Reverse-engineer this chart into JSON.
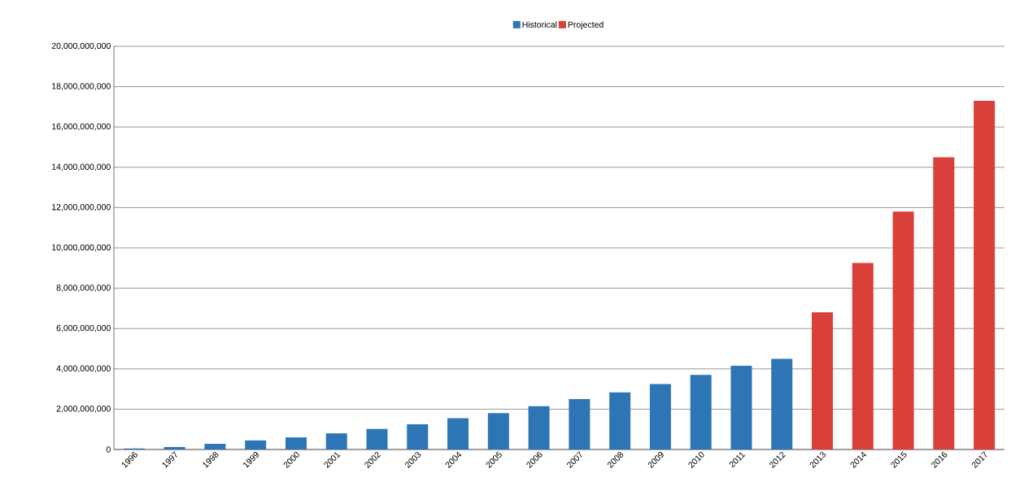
{
  "chart_data": {
    "type": "bar",
    "categories": [
      "1996",
      "1997",
      "1998",
      "1999",
      "2000",
      "2001",
      "2002",
      "2003",
      "2004",
      "2005",
      "2006",
      "2007",
      "2008",
      "2009",
      "2010",
      "2011",
      "2012",
      "2013",
      "2014",
      "2015",
      "2016",
      "2017"
    ],
    "series": [
      {
        "name": "Historical",
        "color": "#2e75b6",
        "values": [
          50000000,
          120000000,
          280000000,
          450000000,
          600000000,
          800000000,
          1020000000,
          1250000000,
          1550000000,
          1800000000,
          2150000000,
          2500000000,
          2830000000,
          3250000000,
          3700000000,
          4150000000,
          4500000000,
          null,
          null,
          null,
          null,
          null
        ]
      },
      {
        "name": "Projected",
        "color": "#d9403a",
        "values": [
          null,
          null,
          null,
          null,
          null,
          null,
          null,
          null,
          null,
          null,
          null,
          null,
          null,
          null,
          null,
          null,
          null,
          6800000000,
          9250000000,
          11800000000,
          14500000000,
          17300000000
        ]
      }
    ],
    "ylim": [
      0,
      20000000000
    ],
    "yticks": [
      0,
      {
        "value": 2000000000,
        "label": "2,000,000,000"
      },
      {
        "value": 4000000000,
        "label": "4,000,000,000"
      },
      {
        "value": 6000000000,
        "label": "6,000,000,000"
      },
      {
        "value": 8000000000,
        "label": "8,000,000,000"
      },
      {
        "value": 10000000000,
        "label": "10,000,000,000"
      },
      {
        "value": 12000000000,
        "label": "12,000,000,000"
      },
      {
        "value": 14000000000,
        "label": "14,000,000,000"
      },
      {
        "value": 16000000000,
        "label": "16,000,000,000"
      },
      {
        "value": 18000000000,
        "label": "18,000,000,000"
      },
      {
        "value": 20000000000,
        "label": "20,000,000,000"
      }
    ],
    "grid": "y",
    "legend": "top"
  }
}
